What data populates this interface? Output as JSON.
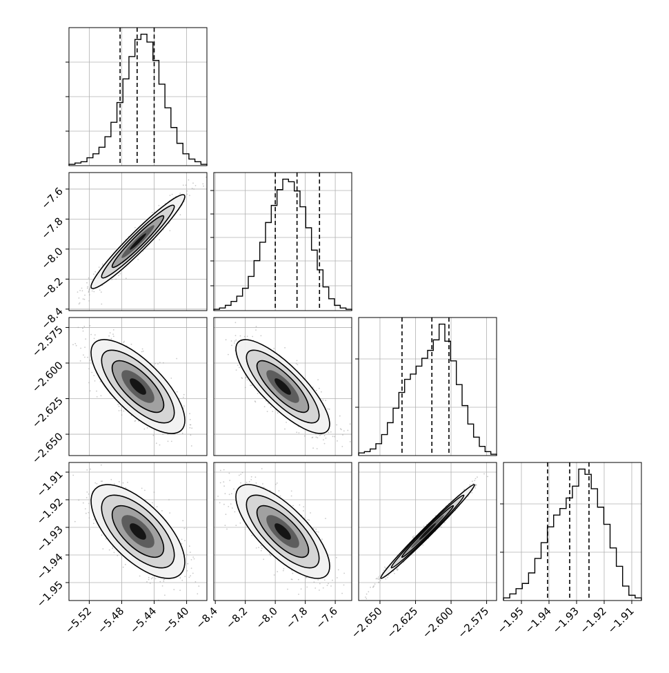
{
  "chart_data": {
    "type": "corner",
    "params": 4,
    "grid": true,
    "colors": {
      "line": "#000000",
      "grid": "#b0b0b0",
      "scatter": "#9a9a9a"
    },
    "quantiles": [
      [
        -5.482,
        -5.461,
        -5.44
      ],
      [
        -8.0,
        -7.855,
        -7.705
      ],
      [
        -2.6345,
        -2.6135,
        -2.6015
      ],
      [
        -1.9405,
        -1.9325,
        -1.9255
      ]
    ],
    "axes": [
      {
        "range": [
          -5.545,
          -5.375
        ],
        "ticks": [
          -5.52,
          -5.48,
          -5.44,
          -5.4
        ],
        "tick_labels": [
          "−5.52",
          "−5.48",
          "−5.44",
          "−5.40"
        ]
      },
      {
        "range": [
          -8.41,
          -7.49
        ],
        "ticks": [
          -8.4,
          -8.2,
          -8.0,
          -7.8,
          -7.6
        ],
        "tick_labels": [
          "−8.4",
          "−8.2",
          "−8.0",
          "−7.8",
          "−7.6"
        ]
      },
      {
        "range": [
          -2.665,
          -2.568
        ],
        "ticks": [
          -2.65,
          -2.625,
          -2.6,
          -2.575
        ],
        "tick_labels": [
          "−2.650",
          "−2.625",
          "−2.600",
          "−2.575"
        ]
      },
      {
        "range": [
          -1.9565,
          -1.9065
        ],
        "ticks": [
          -1.95,
          -1.94,
          -1.93,
          -1.92,
          -1.91
        ],
        "tick_labels": [
          "−1.95",
          "−1.94",
          "−1.93",
          "−1.92",
          "−1.91"
        ]
      }
    ],
    "histograms": [
      [
        1,
        2,
        3,
        6,
        9,
        14,
        22,
        33,
        48,
        66,
        83,
        96,
        100,
        94,
        80,
        62,
        44,
        29,
        17,
        9,
        5,
        3,
        1
      ],
      [
        1,
        2,
        4,
        7,
        11,
        17,
        26,
        38,
        52,
        67,
        80,
        92,
        100,
        98,
        91,
        79,
        63,
        46,
        31,
        18,
        9,
        4,
        2,
        1
      ],
      [
        2,
        3,
        5,
        9,
        16,
        25,
        36,
        48,
        58,
        62,
        68,
        74,
        80,
        88,
        100,
        87,
        72,
        54,
        38,
        24,
        14,
        7,
        3,
        1
      ],
      [
        2,
        5,
        9,
        13,
        21,
        32,
        44,
        56,
        65,
        70,
        78,
        87,
        100,
        96,
        85,
        71,
        58,
        40,
        26,
        11,
        4,
        2
      ]
    ],
    "hist_ymax": [
      105,
      105,
      105,
      105
    ],
    "hist_yticks": [
      [
        0.25,
        0.5,
        0.75
      ],
      [
        0.18,
        0.36,
        0.53,
        0.7,
        0.87
      ],
      [
        0.35,
        0.7
      ],
      [
        0.35,
        0.7
      ]
    ],
    "pairs": [
      {
        "row": 1,
        "col": 0,
        "corr": 0.96
      },
      {
        "row": 2,
        "col": 0,
        "corr": -0.72
      },
      {
        "row": 2,
        "col": 1,
        "corr": -0.8
      },
      {
        "row": 3,
        "col": 0,
        "corr": -0.65
      },
      {
        "row": 3,
        "col": 1,
        "corr": -0.74
      },
      {
        "row": 3,
        "col": 2,
        "corr": 0.99
      }
    ]
  }
}
